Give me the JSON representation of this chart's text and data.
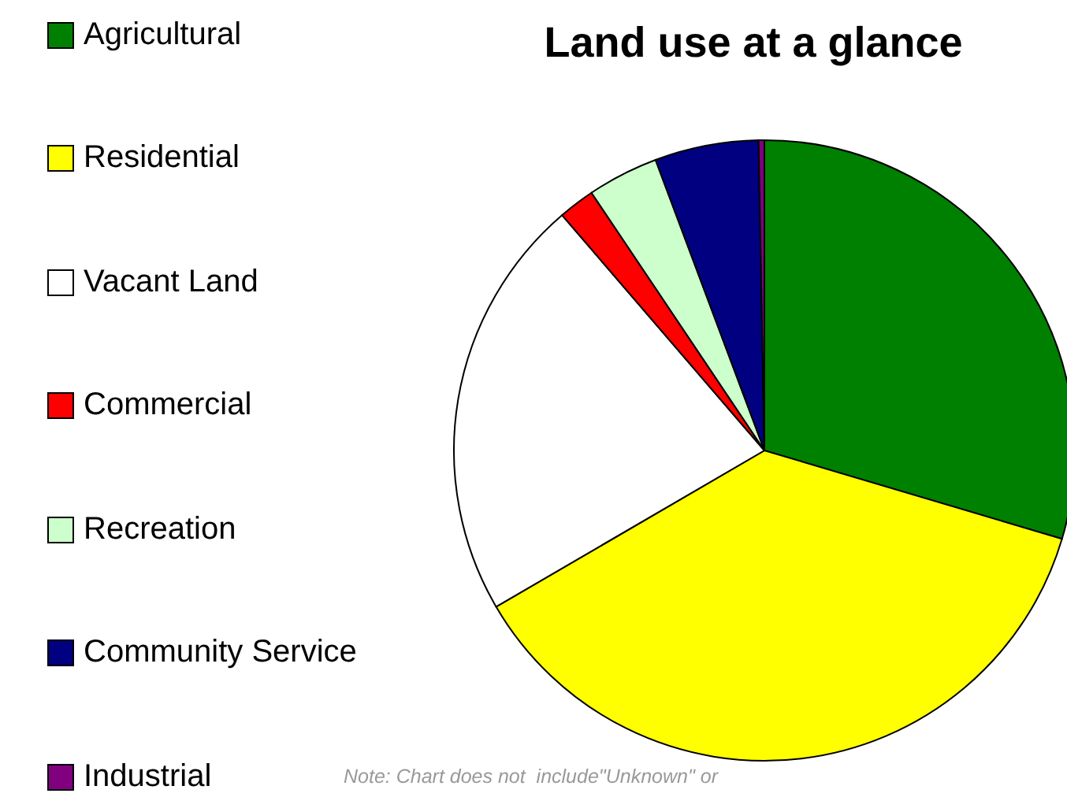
{
  "chart_data": {
    "type": "pie",
    "title": "Land use at a glance",
    "categories": [
      "Agricultural",
      "Residential",
      "Vacant Land",
      "Commercial",
      "Recreation",
      "Community Service",
      "Industrial"
    ],
    "values": [
      29.6,
      37.0,
      22.1,
      1.9,
      3.7,
      5.4,
      0.3
    ],
    "colors": [
      "#008000",
      "#ffff00",
      "#ffffff",
      "#ff0000",
      "#ccffcc",
      "#000080",
      "#800080"
    ],
    "legend": "left",
    "annotations": [
      "Note: Chart does not  include\"Unknown\" or"
    ]
  }
}
